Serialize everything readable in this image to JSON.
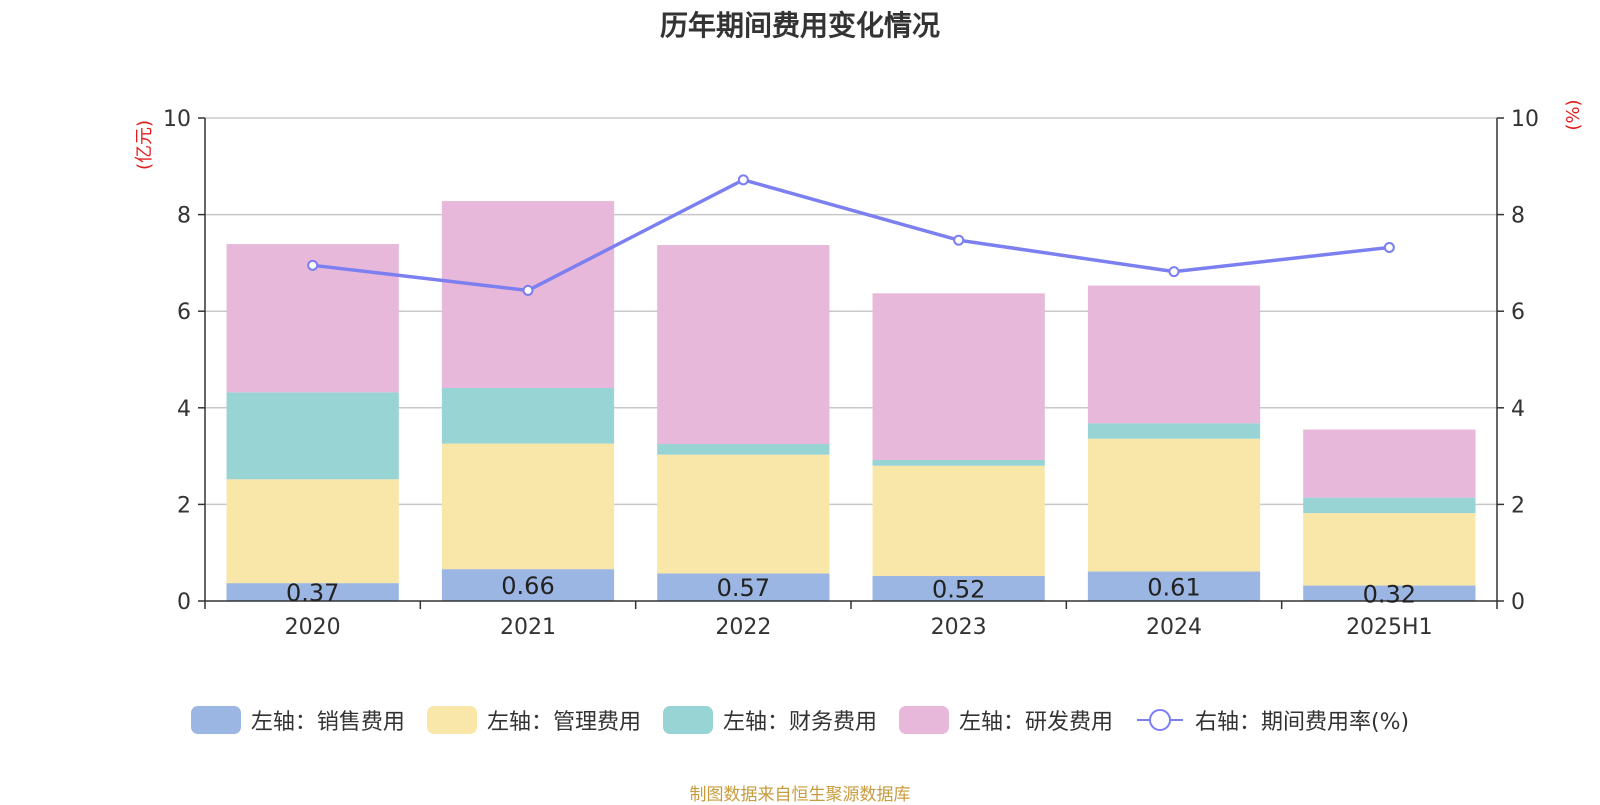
{
  "chart_data": {
    "title": "历年期间费用变化情况",
    "categories": [
      "2020",
      "2021",
      "2022",
      "2023",
      "2024",
      "2025H1"
    ],
    "left_axis": {
      "unit": "(亿元)",
      "ylim": [
        0,
        10
      ],
      "ticks": [
        "0",
        "2",
        "4",
        "6",
        "8",
        "10"
      ]
    },
    "right_axis": {
      "unit": "(%)",
      "ylim": [
        0,
        10
      ],
      "ticks": [
        "0",
        "2",
        "4",
        "6",
        "8",
        "10"
      ]
    },
    "bar_series": [
      {
        "name": "左轴：销售费用",
        "color": "#9bb6e2",
        "values": [
          0.37,
          0.66,
          0.57,
          0.52,
          0.61,
          0.32
        ],
        "labels": [
          "0.37",
          "0.66",
          "0.57",
          "0.52",
          "0.61",
          "0.32"
        ]
      },
      {
        "name": "左轴：管理费用",
        "color": "#f8e7a8",
        "values": [
          2.15,
          2.6,
          2.46,
          2.28,
          2.75,
          1.5
        ]
      },
      {
        "name": "左轴：财务费用",
        "color": "#99d4d4",
        "values": [
          1.8,
          1.15,
          0.22,
          0.12,
          0.32,
          0.32
        ]
      },
      {
        "name": "左轴：研发费用",
        "color": "#e7b8d9",
        "values": [
          3.07,
          3.87,
          4.12,
          3.45,
          2.85,
          1.41
        ]
      }
    ],
    "line_series": {
      "name": "右轴：期间费用率(%)",
      "color": "#7b7ff0",
      "values": [
        6.95,
        6.43,
        8.72,
        7.47,
        6.82,
        7.32
      ]
    },
    "type": "bar",
    "stacked": true,
    "grid": true,
    "legend_position": "bottom"
  },
  "source_note": "制图数据来自恒生聚源数据库"
}
